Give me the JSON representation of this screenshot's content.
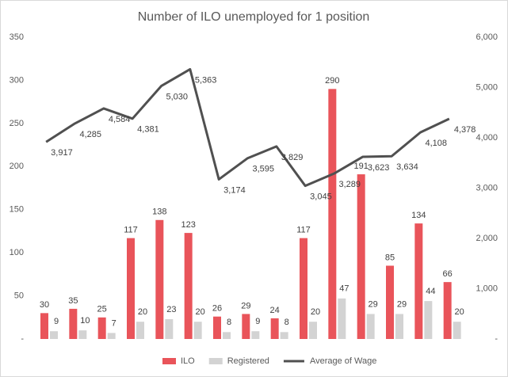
{
  "chart_data": {
    "type": "bar",
    "title": "Number of ILO unemployed for 1 position",
    "categories": [
      null,
      null,
      null,
      null,
      null,
      null,
      null,
      null,
      null,
      null,
      null,
      null,
      null,
      null,
      null
    ],
    "series": [
      {
        "name": "ILO",
        "type": "bar",
        "color": "#e9545a",
        "values": [
          30,
          35,
          25,
          117,
          138,
          123,
          26,
          29,
          24,
          117,
          290,
          191,
          85,
          134,
          66
        ]
      },
      {
        "name": "Registered",
        "type": "bar",
        "color": "#d3d3d3",
        "values": [
          9,
          10,
          7,
          20,
          23,
          20,
          8,
          9,
          8,
          20,
          47,
          29,
          29,
          44,
          20
        ]
      },
      {
        "name": "Average of Wage",
        "type": "line",
        "axis": "y2",
        "color": "#505050",
        "values": [
          3917,
          4285,
          4584,
          4381,
          5030,
          5363,
          3174,
          3595,
          3829,
          3045,
          3289,
          3623,
          3634,
          4108,
          4378
        ],
        "value_labels": [
          "3,917",
          "4,285",
          "4,584",
          "4,381",
          "5,030",
          "5,363",
          "3,174",
          "3,595",
          "3,829",
          "3,045",
          "3,289",
          "3,623",
          "3,634",
          "4,108",
          "4,378"
        ]
      }
    ],
    "ylim": [
      0,
      350
    ],
    "yticks": [
      {
        "value": 0,
        "label": "-"
      },
      50,
      100,
      150,
      200,
      250,
      300,
      350
    ],
    "y2lim": [
      0,
      6000
    ],
    "y2ticks": [
      {
        "value": 0,
        "label": "-"
      },
      {
        "value": 1000,
        "label": "1,000"
      },
      {
        "value": 2000,
        "label": "2,000"
      },
      {
        "value": 3000,
        "label": "3,000"
      },
      {
        "value": 4000,
        "label": "4,000"
      },
      {
        "value": 5000,
        "label": "5,000"
      },
      {
        "value": 6000,
        "label": "6,000"
      }
    ],
    "legend": "bottom"
  }
}
